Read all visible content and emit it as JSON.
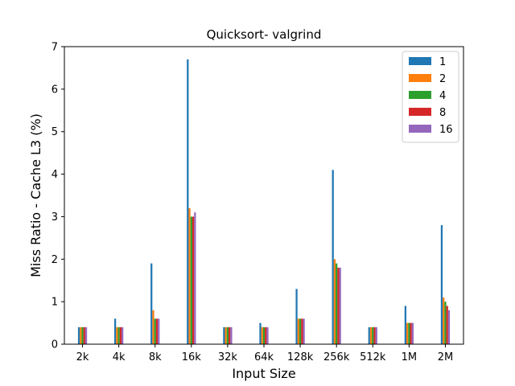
{
  "chart_data": {
    "type": "bar",
    "title": "Quicksort- valgrind",
    "xlabel": "Input Size",
    "ylabel": "Miss Ratio - Cache L3 (%)",
    "categories": [
      "2k",
      "4k",
      "8k",
      "16k",
      "32k",
      "64k",
      "128k",
      "256k",
      "512k",
      "1M",
      "2M"
    ],
    "ylim": [
      0,
      7
    ],
    "yticks": [
      0,
      1,
      2,
      3,
      4,
      5,
      6,
      7
    ],
    "grid": false,
    "legend_position": "top-right",
    "series": [
      {
        "name": "1",
        "color": "#1f77b4",
        "values": [
          0.4,
          0.6,
          1.9,
          6.7,
          0.4,
          0.5,
          1.3,
          4.1,
          0.4,
          0.9,
          2.8
        ]
      },
      {
        "name": "2",
        "color": "#ff7f0e",
        "values": [
          0.4,
          0.4,
          0.8,
          3.2,
          0.4,
          0.4,
          0.6,
          2.0,
          0.4,
          0.5,
          1.1
        ]
      },
      {
        "name": "4",
        "color": "#2ca02c",
        "values": [
          0.4,
          0.4,
          0.6,
          3.0,
          0.4,
          0.4,
          0.6,
          1.9,
          0.4,
          0.5,
          1.0
        ]
      },
      {
        "name": "8",
        "color": "#d62728",
        "values": [
          0.4,
          0.4,
          0.6,
          3.0,
          0.4,
          0.4,
          0.6,
          1.8,
          0.4,
          0.5,
          0.9
        ]
      },
      {
        "name": "16",
        "color": "#9467bd",
        "values": [
          0.4,
          0.4,
          0.6,
          3.1,
          0.4,
          0.4,
          0.6,
          1.8,
          0.4,
          0.5,
          0.8
        ]
      }
    ]
  }
}
